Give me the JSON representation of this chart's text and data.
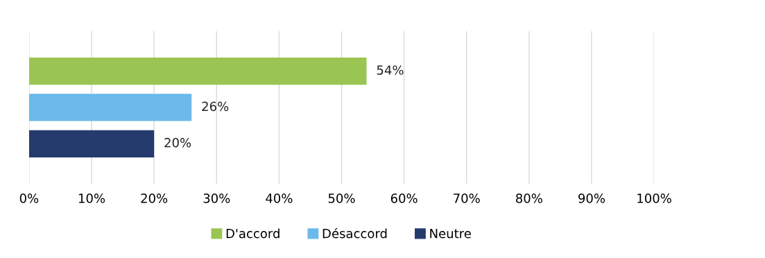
{
  "chart_data": {
    "type": "bar",
    "orientation": "horizontal",
    "categories": [
      null
    ],
    "series": [
      {
        "name": "D'accord",
        "color": "#9bc553",
        "values": [
          54
        ],
        "value_labels": [
          "54%"
        ]
      },
      {
        "name": "Désaccord",
        "color": "#6cb9ea",
        "values": [
          26
        ],
        "value_labels": [
          "26%"
        ]
      },
      {
        "name": "Neutre",
        "color": "#253b6d",
        "values": [
          20
        ],
        "value_labels": [
          "20%"
        ]
      }
    ],
    "xlim": [
      0,
      100
    ],
    "xticks": [
      {
        "value": 0,
        "label": "0%"
      },
      {
        "value": 10,
        "label": "10%"
      },
      {
        "value": 20,
        "label": "20%"
      },
      {
        "value": 30,
        "label": "30%"
      },
      {
        "value": 40,
        "label": "40%"
      },
      {
        "value": 50,
        "label": "50%"
      },
      {
        "value": 60,
        "label": "60%"
      },
      {
        "value": 70,
        "label": "70%"
      },
      {
        "value": 80,
        "label": "80%"
      },
      {
        "value": 90,
        "label": "90%"
      },
      {
        "value": 100,
        "label": "100%"
      }
    ],
    "grid": "x",
    "legend": "bottom",
    "tick_labels": "x"
  }
}
